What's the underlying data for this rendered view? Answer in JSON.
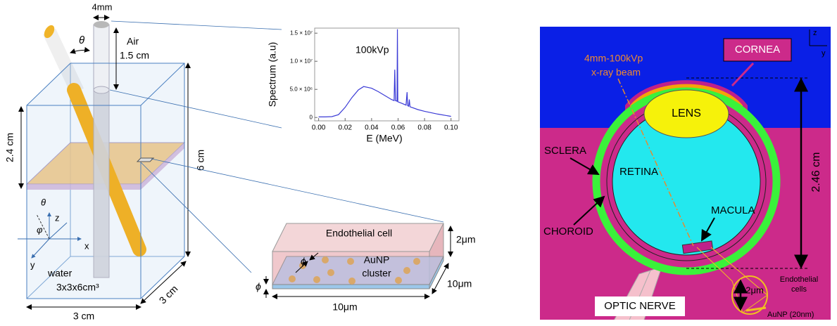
{
  "chart_data": {
    "type": "line",
    "annotation": "100kVp",
    "ylabel": "Spectrum (a.u)",
    "xlabel": "E (MeV)",
    "color": "#3b3bd6",
    "x": [
      0,
      0.005,
      0.01,
      0.015,
      0.02,
      0.025,
      0.03,
      0.034,
      0.04,
      0.045,
      0.05,
      0.055,
      0.057,
      0.0575,
      0.058,
      0.0592,
      0.0595,
      0.0598,
      0.062,
      0.066,
      0.0668,
      0.0672,
      0.068,
      0.0685,
      0.069,
      0.075,
      0.08,
      0.09,
      0.1
    ],
    "y": [
      100000,
      100000,
      150000,
      500000,
      1800000,
      3500000,
      4900000,
      5500000,
      5200000,
      4600000,
      3900000,
      3200000,
      3000000,
      8500000,
      3000000,
      2900000,
      15700000,
      2800000,
      2600000,
      2200000,
      4500000,
      2100000,
      2000000,
      3200000,
      1900000,
      1400000,
      1100000,
      600000,
      200000
    ],
    "xlim": [
      -0.003,
      0.106
    ],
    "ylim": [
      -600000,
      15900000
    ],
    "xticks": [
      {
        "value": 0,
        "label": "0.00"
      },
      0.02,
      0.04,
      0.06,
      0.08,
      {
        "value": 0.1,
        "label": "0.10"
      }
    ],
    "yticks": [
      0,
      {
        "value": 5000000,
        "label": "5.0 × 10⁶"
      },
      {
        "value": 10000000,
        "label": "1.0 × 10⁷"
      },
      {
        "value": 15000000,
        "label": "1.5 × 10⁷"
      }
    ]
  },
  "setup": {
    "beam_width": "4mm",
    "theta": "θ",
    "air": "Air",
    "air_gap": "1.5 cm",
    "slab_height": "2.4 cm",
    "height": "6 cm",
    "axis_theta": "θ",
    "axis_z": "z",
    "axis_phi": "φ",
    "axis_x": "x",
    "axis_y": "y",
    "medium": "water",
    "volume": "3x3x6cm³",
    "width": "3 cm",
    "depth": "3 cm"
  },
  "cell": {
    "title": "Endothelial cell",
    "height": "2μm",
    "cluster_1": "AuNP",
    "cluster_2": "cluster",
    "phi_inner": "ϕ",
    "phi_outer": "ϕ",
    "depth": "10μm",
    "width": "10μm"
  },
  "eye": {
    "axis_z": "z",
    "axis_y": "y",
    "cornea": "CORNEA",
    "beam_1": "4mm-100kVp",
    "beam_2": "x-ray beam",
    "lens": "LENS",
    "size": "2.46 cm",
    "sclera": "SCLERA",
    "retina": "RETINA",
    "macula": "MACULA",
    "choroid": "CHOROID",
    "optic_nerve": "OPTIC NERVE",
    "zoom_size": "2μm",
    "zoom_cells_1": "Endothelial",
    "zoom_cells_2": "cells",
    "zoom_np": "AuNP (20nm)"
  }
}
